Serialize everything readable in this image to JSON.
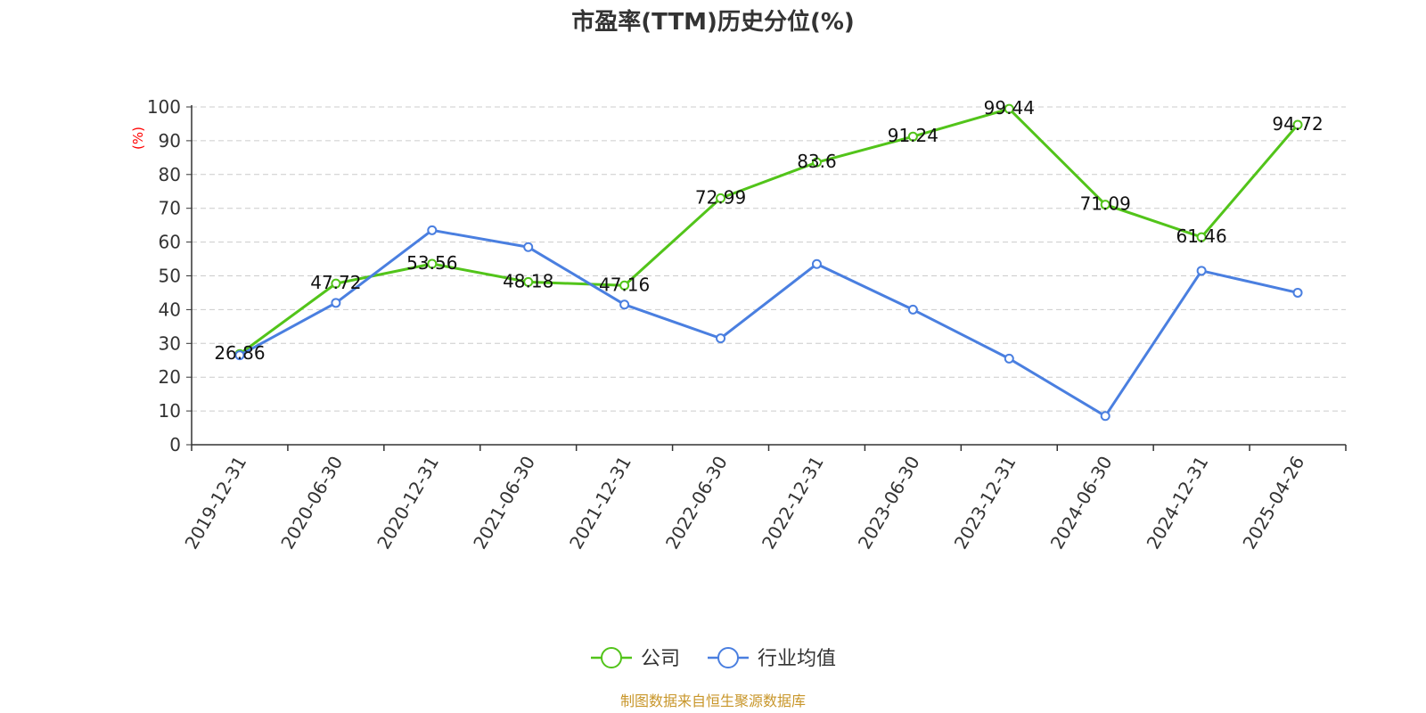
{
  "chart_data": {
    "type": "line",
    "title": "市盈率(TTM)历史分位(%)",
    "ylabel": "(%)",
    "ylim": [
      0,
      100
    ],
    "yticks": [
      0,
      10,
      20,
      30,
      40,
      50,
      60,
      70,
      80,
      90,
      100
    ],
    "grid": true,
    "legend_position": "bottom-center",
    "categories": [
      "2019-12-31",
      "2020-06-30",
      "2020-12-31",
      "2021-06-30",
      "2021-12-31",
      "2022-06-30",
      "2022-12-31",
      "2023-06-30",
      "2023-12-31",
      "2024-06-30",
      "2024-12-31",
      "2025-04-26"
    ],
    "series": [
      {
        "name": "公司",
        "color": "#52c41a",
        "values": [
          26.86,
          47.72,
          53.56,
          48.18,
          47.16,
          72.99,
          83.6,
          91.24,
          99.44,
          71.09,
          61.46,
          94.72
        ],
        "labels": [
          "26.86",
          "47.72",
          "53.56",
          "48.18",
          "47.16",
          "72.99",
          "83.6",
          "91.24",
          "99.44",
          "71.09",
          "61.46",
          "94.72"
        ]
      },
      {
        "name": "行业均值",
        "color": "#4a7fe0",
        "values": [
          26.5,
          42,
          63.5,
          58.5,
          41.5,
          31.5,
          53.5,
          40,
          25.5,
          8.5,
          51.5,
          45
        ]
      }
    ],
    "source": "制图数据来自恒生聚源数据库"
  }
}
